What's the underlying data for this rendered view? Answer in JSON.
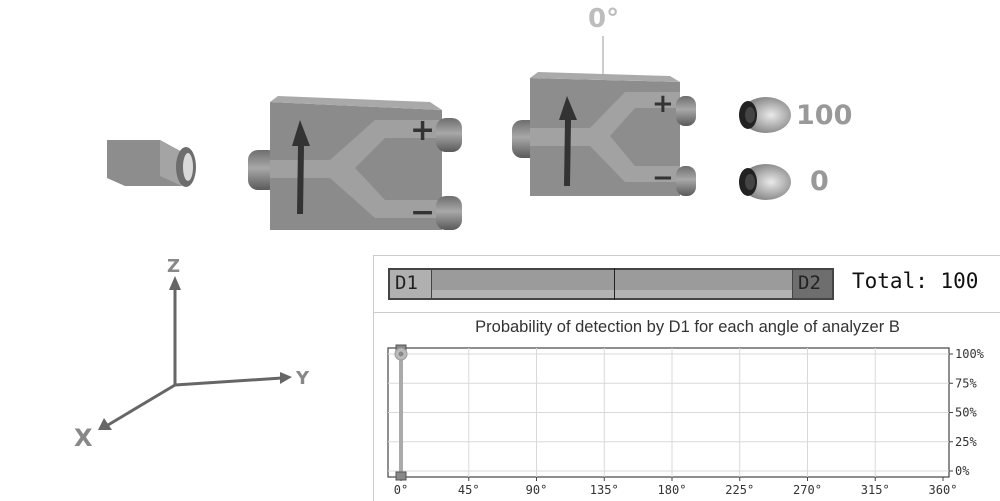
{
  "scene": {
    "analyzer_angle": "0°",
    "plus_count": "100",
    "minus_count": "0",
    "analyzer_a_plus": "+",
    "analyzer_a_minus": "−",
    "analyzer_b_plus": "+",
    "analyzer_b_minus": "−"
  },
  "axes": {
    "z": "Z",
    "y": "Y",
    "x": "X"
  },
  "detection": {
    "d1_label": "D1",
    "d2_label": "D2",
    "d1_fraction": 1.0,
    "total_label": "Total: 100"
  },
  "chart_data": {
    "type": "line",
    "title": "Probability of detection by D1 for each angle of analyzer B",
    "x_ticks": [
      "0°",
      "45°",
      "90°",
      "135°",
      "180°",
      "225°",
      "270°",
      "315°",
      "360°"
    ],
    "y_ticks": [
      "100%",
      "75%",
      "50%",
      "25%",
      "0%"
    ],
    "xlim": [
      0,
      360
    ],
    "ylim": [
      0,
      100
    ],
    "grid": true,
    "series": [
      {
        "x": [
          0
        ],
        "y": [
          100
        ]
      }
    ],
    "slider_angle": 0,
    "colors": {
      "grid": "#d9d9d9",
      "handle": "#888888",
      "point": "#bbbbbb"
    }
  }
}
